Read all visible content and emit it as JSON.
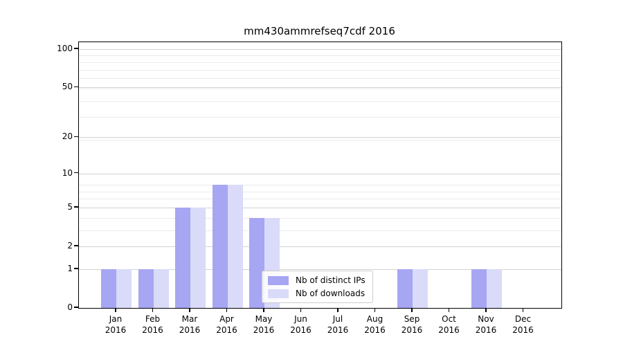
{
  "chart_data": {
    "type": "bar",
    "title": "mm430ammrefseq7cdf 2016",
    "x_tick_year": "2016",
    "categories": [
      "Jan",
      "Feb",
      "Mar",
      "Apr",
      "May",
      "Jun",
      "Jul",
      "Aug",
      "Sep",
      "Oct",
      "Nov",
      "Dec"
    ],
    "series": [
      {
        "name": "Nb of distinct IPs",
        "color": "#a6a6f3",
        "values": [
          1,
          1,
          5,
          8,
          4,
          0,
          0,
          0,
          1,
          0,
          1,
          0
        ]
      },
      {
        "name": "Nb of downloads",
        "color": "#dadaf9",
        "values": [
          1,
          1,
          5,
          8,
          4,
          0,
          0,
          0,
          1,
          0,
          1,
          0
        ]
      }
    ],
    "y_ticks": [
      0,
      1,
      2,
      5,
      10,
      20,
      50,
      100
    ],
    "y_scale": "log10(1+x)",
    "ylim": [
      0,
      113
    ],
    "xlabel": "",
    "ylabel": "",
    "grid": "horizontal",
    "legend_position": "inside-bottom-center"
  }
}
